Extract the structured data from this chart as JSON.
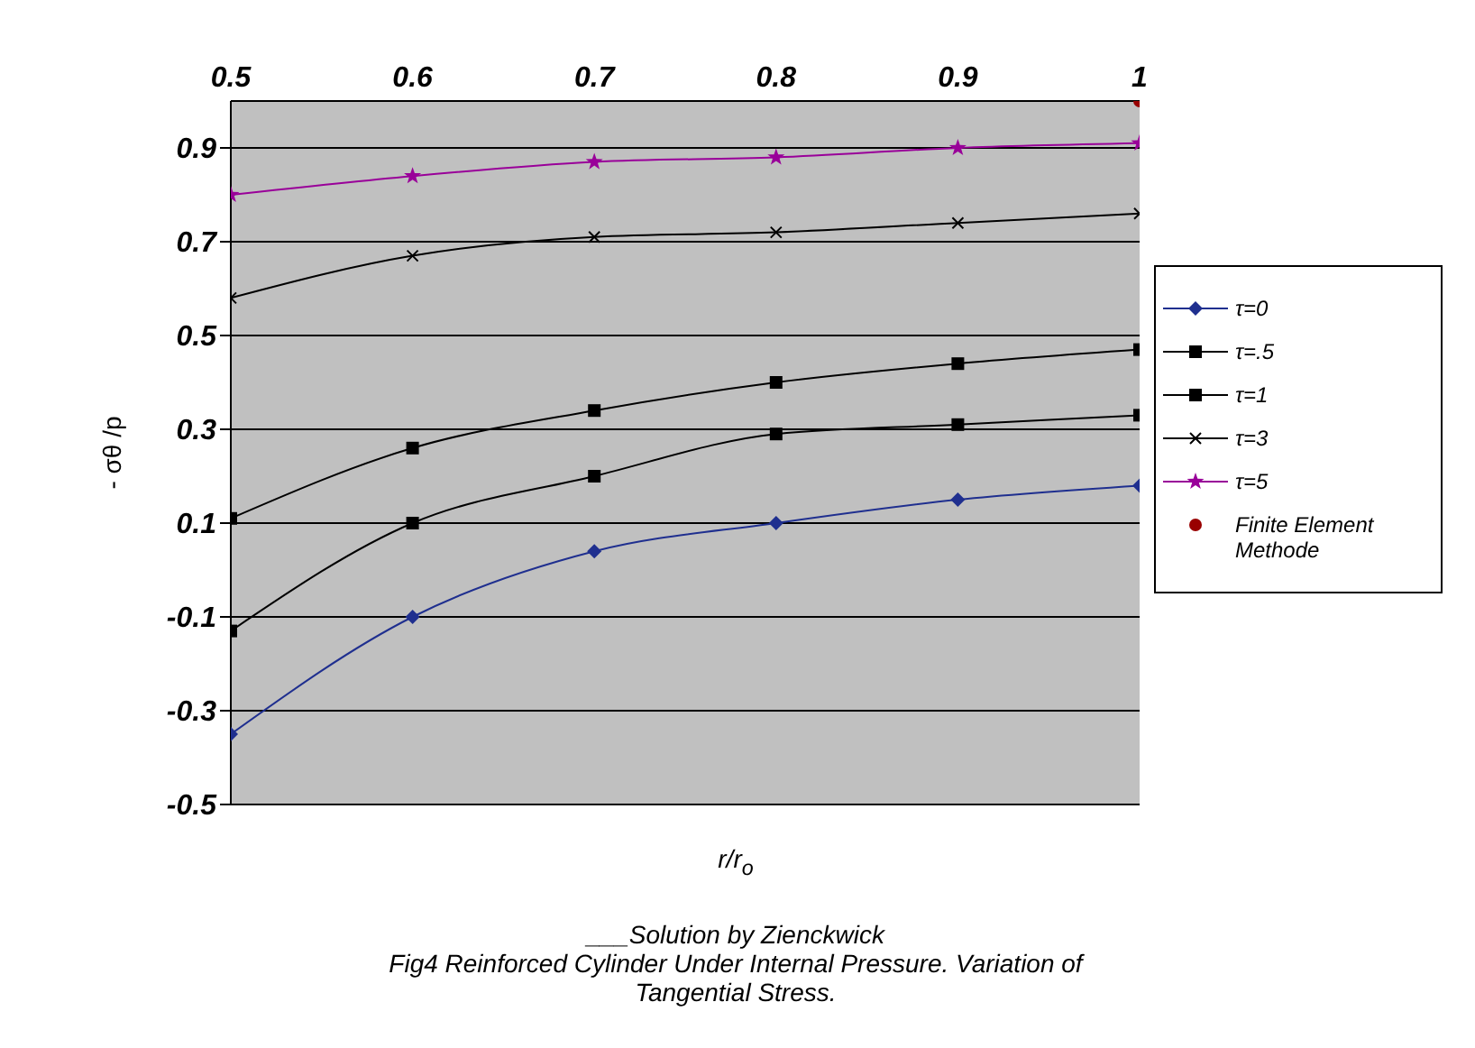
{
  "chart_data": {
    "type": "line",
    "xlabel": "r/r$_{o}$",
    "ylabel": "- σθ /p",
    "annotations": [
      "___Solution by Zienckwick",
      "Fig4 Reinforced Cylinder Under Internal Pressure. Variation of Tangential Stress."
    ],
    "x": [
      0.5,
      0.6,
      0.7,
      0.8,
      0.9,
      1
    ],
    "series": [
      {
        "name": "τ=0",
        "color": "#1f2f8f",
        "marker": "diamond",
        "values": [
          -0.35,
          -0.1,
          0.04,
          0.1,
          0.15,
          0.18
        ]
      },
      {
        "name": "τ=.5",
        "color": "#000000",
        "marker": "square",
        "values": [
          -0.13,
          0.1,
          0.2,
          0.29,
          0.31,
          0.33
        ]
      },
      {
        "name": "τ=1",
        "color": "#000000",
        "marker": "square",
        "values": [
          0.11,
          0.26,
          0.34,
          0.4,
          0.44,
          0.47
        ]
      },
      {
        "name": "τ=3",
        "color": "#000000",
        "marker": "cross",
        "values": [
          0.58,
          0.67,
          0.71,
          0.72,
          0.74,
          0.76
        ]
      },
      {
        "name": "τ=5",
        "color": "#990099",
        "marker": "star",
        "values": [
          0.8,
          0.84,
          0.87,
          0.88,
          0.9,
          0.91
        ]
      },
      {
        "name": "Finite Element Methode",
        "type": "scatter",
        "color": "#990000",
        "marker": "circle",
        "x": [
          1
        ],
        "values": [
          1.0
        ]
      }
    ],
    "xlim": [
      0.5,
      1
    ],
    "xticks": [
      0.5,
      0.6,
      0.7,
      0.8,
      0.9,
      1
    ],
    "ylim": [
      -0.5,
      1.0
    ],
    "yticks": [
      -0.5,
      -0.3,
      -0.1,
      0.1,
      0.3,
      0.5,
      0.7,
      0.9
    ],
    "grid": "y",
    "legend": "right",
    "line_style": "solid"
  }
}
